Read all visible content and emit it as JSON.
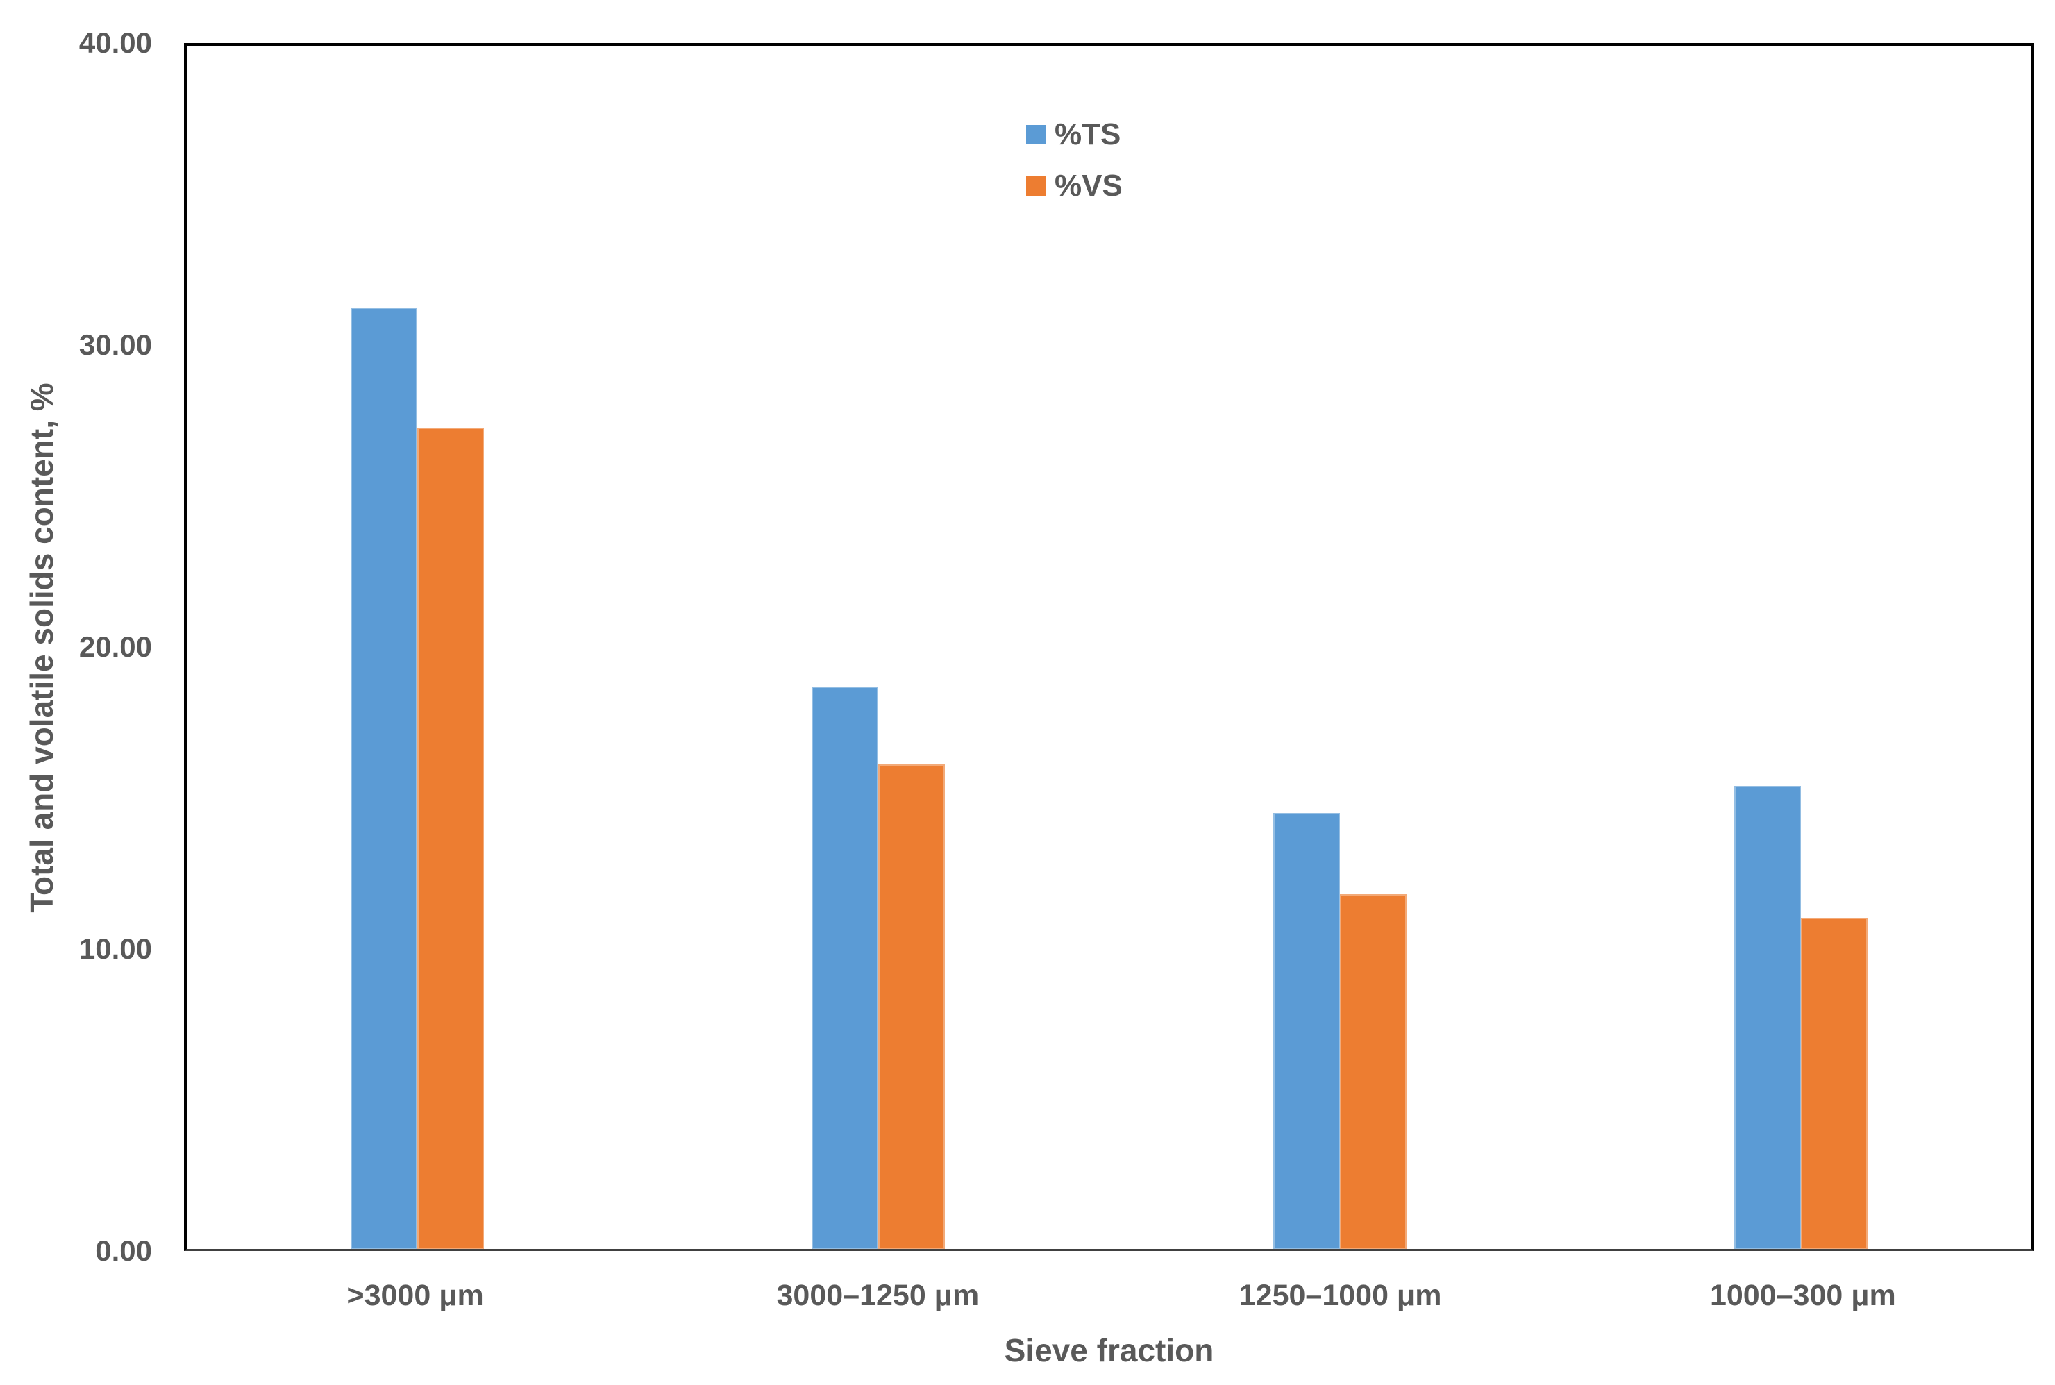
{
  "chart_data": {
    "type": "bar",
    "title": "",
    "categories": [
      ">3000 μm",
      "3000–1250 μm",
      "1250–1000 μm",
      "1000–300 μm"
    ],
    "series": [
      {
        "name": "%TS",
        "color": "#5B9BD5",
        "values": [
          31.3,
          18.7,
          14.5,
          15.4
        ]
      },
      {
        "name": "%VS",
        "color": "#ED7D31",
        "values": [
          27.3,
          16.1,
          11.8,
          11.0
        ]
      }
    ],
    "xlabel": "Sieve fraction",
    "ylabel": "Total and volatile solids content, %",
    "ylim": [
      0,
      40
    ],
    "yticks": [
      {
        "label": "0.00",
        "value": 0
      },
      {
        "label": "10.00",
        "value": 10
      },
      {
        "label": "20.00",
        "value": 20
      },
      {
        "label": "30.00",
        "value": 30
      },
      {
        "label": "40.00",
        "value": 40
      }
    ],
    "grid": false,
    "legend_position": "inside-top-center",
    "colors": {
      "text": "#595959",
      "plot_border": "#000000",
      "baseline": "#404040",
      "background": "#FFFFFF"
    }
  }
}
